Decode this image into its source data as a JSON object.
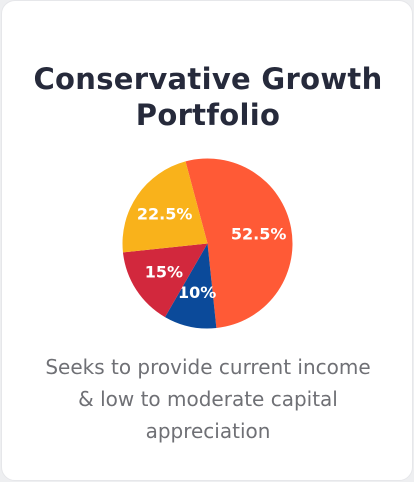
{
  "card": {
    "title_line1": "Conservative Growth",
    "title_line2": "Portfolio",
    "description_line1": "Seeks to provide current income",
    "description_line2": "& low to moderate capital",
    "description_line3": "appreciation"
  },
  "chart_data": {
    "type": "pie",
    "title": "",
    "slices": [
      {
        "label": "52.5%",
        "value": 52.5,
        "color": "#ff5a36"
      },
      {
        "label": "10%",
        "value": 10,
        "color": "#0b4a9a"
      },
      {
        "label": "15%",
        "value": 15,
        "color": "#d2283d"
      },
      {
        "label": "22.5%",
        "value": 22.5,
        "color": "#f9b21b"
      }
    ],
    "start_angle_deg": -15,
    "direction": "clockwise"
  }
}
